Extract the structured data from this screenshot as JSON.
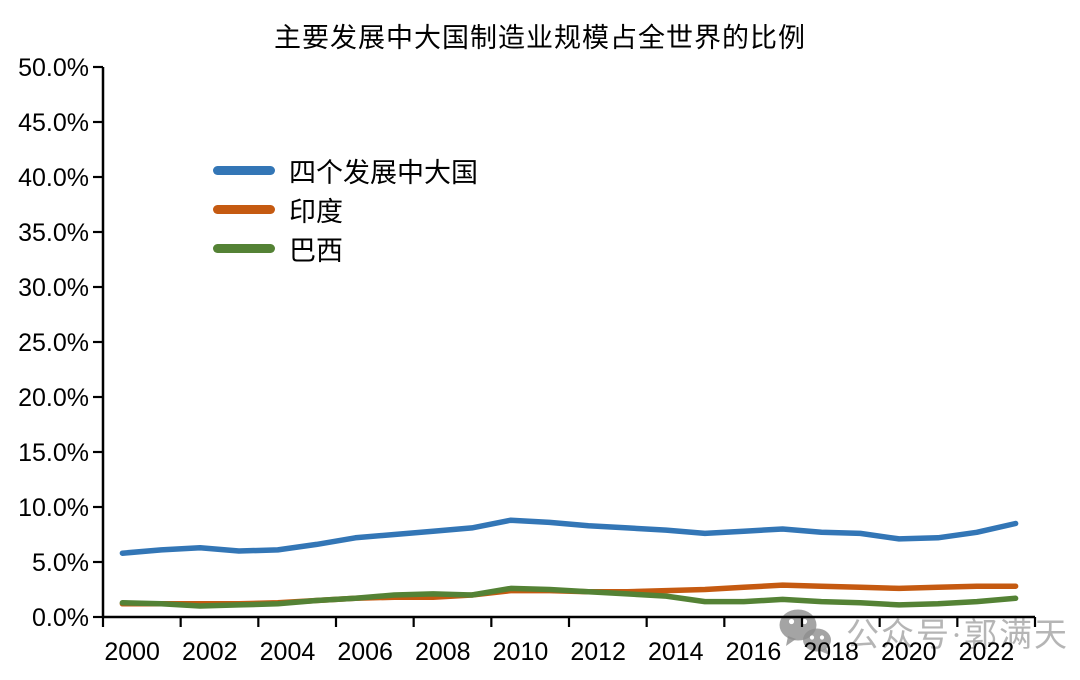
{
  "title": "主要发展中大国制造业规模占全世界的比例",
  "watermark": {
    "text": "公众号·郭满天",
    "icon": "wechat-icon"
  },
  "colors": {
    "axis": "#000000",
    "blue": "#3376B6",
    "orange": "#C55A11",
    "green": "#548235",
    "watermark_icon": "#8d8d8d",
    "watermark_text": "#b5b5b5"
  },
  "chart_data": {
    "type": "line",
    "title": "主要发展中大国制造业规模占全世界的比例",
    "x": [
      2000,
      2001,
      2002,
      2003,
      2004,
      2005,
      2006,
      2007,
      2008,
      2009,
      2010,
      2011,
      2012,
      2013,
      2014,
      2015,
      2016,
      2017,
      2018,
      2019,
      2020,
      2021,
      2022,
      2023
    ],
    "x_tick_labels": [
      "2000",
      "2002",
      "2004",
      "2006",
      "2008",
      "2010",
      "2012",
      "2014",
      "2016",
      "2018",
      "2020",
      "2022"
    ],
    "ylim": [
      0,
      50
    ],
    "y_tick_step": 5,
    "y_tick_labels": [
      "0.0%",
      "5.0%",
      "10.0%",
      "15.0%",
      "20.0%",
      "25.0%",
      "30.0%",
      "35.0%",
      "40.0%",
      "45.0%",
      "50.0%"
    ],
    "grid": false,
    "legend_position": "upper-left-inside",
    "series": [
      {
        "name": "四个发展中大国",
        "color": "#3376B6",
        "values": [
          5.8,
          6.1,
          6.3,
          6.0,
          6.1,
          6.6,
          7.2,
          7.5,
          7.8,
          8.1,
          8.8,
          8.6,
          8.3,
          8.1,
          7.9,
          7.6,
          7.8,
          8.0,
          7.7,
          7.6,
          7.1,
          7.2,
          7.7,
          8.5
        ]
      },
      {
        "name": "印度",
        "color": "#C55A11",
        "values": [
          1.2,
          1.2,
          1.2,
          1.2,
          1.3,
          1.5,
          1.7,
          1.8,
          1.8,
          2.0,
          2.4,
          2.4,
          2.3,
          2.3,
          2.4,
          2.5,
          2.7,
          2.9,
          2.8,
          2.7,
          2.6,
          2.7,
          2.8,
          2.8
        ]
      },
      {
        "name": "巴西",
        "color": "#548235",
        "values": [
          1.3,
          1.2,
          1.0,
          1.1,
          1.2,
          1.5,
          1.7,
          2.0,
          2.1,
          2.0,
          2.6,
          2.5,
          2.3,
          2.1,
          1.9,
          1.4,
          1.4,
          1.6,
          1.4,
          1.3,
          1.1,
          1.2,
          1.4,
          1.7
        ]
      }
    ]
  }
}
